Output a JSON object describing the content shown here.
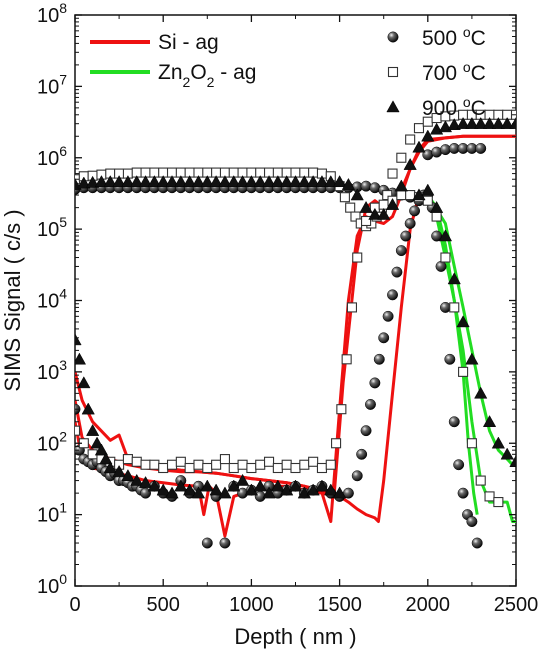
{
  "chart_data": {
    "type": "line",
    "title": "",
    "xlabel": "Depth ( nm )",
    "ylabel": "SIMS Signal ( c/s )",
    "xlim": [
      0,
      2500
    ],
    "ylim": [
      1,
      100000000
    ],
    "yscale": "log",
    "x_ticks": [
      0,
      500,
      1000,
      1500,
      2000,
      2500
    ],
    "y_ticks": [
      1,
      10,
      100,
      1000,
      10000,
      100000,
      1000000,
      10000000,
      100000000
    ],
    "y_tick_labels": [
      {
        "base": "10",
        "exp": "0"
      },
      {
        "base": "10",
        "exp": "1"
      },
      {
        "base": "10",
        "exp": "2"
      },
      {
        "base": "10",
        "exp": "3"
      },
      {
        "base": "10",
        "exp": "4"
      },
      {
        "base": "10",
        "exp": "5"
      },
      {
        "base": "10",
        "exp": "6"
      },
      {
        "base": "10",
        "exp": "7"
      },
      {
        "base": "10",
        "exp": "8"
      }
    ],
    "grid": false,
    "legends": [
      {
        "placement": "top-left",
        "entries": [
          {
            "label_parts": [
              [
                "Si - ag",
                ""
              ]
            ],
            "color": "#ee1111",
            "marker": "line"
          },
          {
            "label_parts": [
              [
                "Zn",
                ""
              ],
              [
                "2",
                "sub"
              ],
              [
                "O",
                ""
              ],
              [
                "2",
                "sub"
              ],
              [
                " - ag",
                ""
              ]
            ],
            "color": "#22dd22",
            "marker": "line"
          }
        ]
      },
      {
        "placement": "top-right",
        "entries": [
          {
            "label_parts": [
              [
                "500 ",
                ""
              ],
              [
                "o",
                "sup"
              ],
              [
                "C",
                ""
              ]
            ],
            "marker": "sphere"
          },
          {
            "label_parts": [
              [
                "700 ",
                ""
              ],
              [
                "o",
                "sup"
              ],
              [
                "C",
                ""
              ]
            ],
            "marker": "open-square"
          },
          {
            "label_parts": [
              [
                "900 ",
                ""
              ],
              [
                "o",
                "sup"
              ],
              [
                "C",
                ""
              ]
            ],
            "marker": "triangle"
          }
        ]
      }
    ],
    "series": [
      {
        "name": "Si - ag",
        "group": 1,
        "color": "#ee1111",
        "temp": "500",
        "style": "line",
        "x": [
          0,
          40,
          100,
          200,
          300,
          400,
          500,
          600,
          700,
          730,
          760,
          800,
          850,
          900,
          1000,
          1100,
          1200,
          1300,
          1400,
          1500,
          1550,
          1600,
          1650,
          1700,
          1720,
          1750,
          1800,
          1850,
          1900,
          1950,
          2000
        ],
        "y": [
          200,
          60,
          45,
          40,
          35,
          30,
          28,
          26,
          25,
          10,
          25,
          20,
          5,
          18,
          22,
          25,
          25,
          22,
          20,
          18,
          15,
          12,
          10,
          9,
          8,
          30,
          500,
          8000,
          100000,
          300000,
          350000
        ]
      },
      {
        "name": "Si - ag",
        "group": 1,
        "color": "#ee1111",
        "temp": "700",
        "style": "line",
        "x": [
          0,
          40,
          100,
          200,
          300,
          400,
          500,
          600,
          700,
          800,
          900,
          1000,
          1100,
          1200,
          1300,
          1400,
          1450,
          1500,
          1550,
          1600,
          1650,
          1700,
          1750,
          1800,
          1850,
          1900,
          1950,
          2000,
          2100,
          2200,
          2300,
          2400,
          2500
        ],
        "y": [
          400,
          120,
          80,
          60,
          50,
          45,
          42,
          40,
          40,
          38,
          35,
          32,
          30,
          28,
          25,
          20,
          8,
          300,
          10000,
          80000,
          150000,
          130000,
          120000,
          150000,
          300000,
          700000,
          1300000,
          1800000,
          1900000,
          2000000,
          2000000,
          2000000,
          2000000
        ]
      },
      {
        "name": "Si - ag",
        "group": 1,
        "color": "#ee1111",
        "temp": "900",
        "style": "line",
        "x": [
          0,
          40,
          100,
          200,
          250,
          300,
          400,
          500,
          600,
          700,
          800,
          900,
          1000,
          1100,
          1200,
          1300,
          1400,
          1470,
          1520,
          1600,
          1650,
          1700,
          1750,
          1800,
          1850,
          1900,
          1950,
          2000,
          2100,
          2200,
          2300,
          2400,
          2500
        ],
        "y": [
          1000,
          400,
          200,
          110,
          130,
          60,
          50,
          45,
          42,
          40,
          38,
          35,
          32,
          30,
          28,
          25,
          22,
          20,
          700,
          50000,
          200000,
          250000,
          200000,
          200000,
          350000,
          700000,
          1200000,
          1700000,
          1900000,
          2000000,
          2000000,
          2000000,
          2000000
        ]
      },
      {
        "name": "Zn2O2 - ag",
        "group": 2,
        "color": "#22dd22",
        "temp": "500",
        "style": "line",
        "x": [
          2000,
          2050,
          2100,
          2150,
          2200,
          2230,
          2260,
          2280
        ],
        "y": [
          300000,
          200000,
          60000,
          10000,
          1000,
          100,
          20,
          10
        ]
      },
      {
        "name": "Zn2O2 - ag",
        "group": 2,
        "color": "#22dd22",
        "temp": "700",
        "style": "line",
        "x": [
          2000,
          2050,
          2100,
          2150,
          2200,
          2250,
          2300,
          2350,
          2400,
          2450,
          2480,
          2500
        ],
        "y": [
          250000,
          150000,
          40000,
          10000,
          2000,
          200,
          30,
          15,
          15,
          15,
          8,
          8
        ]
      },
      {
        "name": "Zn2O2 - ag",
        "group": 2,
        "color": "#22dd22",
        "temp": "900",
        "style": "line",
        "x": [
          2000,
          2100,
          2150,
          2200,
          2250,
          2300,
          2350,
          2400,
          2450,
          2480,
          2500
        ],
        "y": [
          300000,
          120000,
          30000,
          8000,
          2000,
          500,
          150,
          80,
          60,
          50,
          50
        ]
      },
      {
        "name": "500 oC",
        "group": 3,
        "marker": "sphere",
        "style": "markers",
        "color": "#111111",
        "x": [
          0,
          25,
          50,
          75,
          100,
          125,
          150,
          175,
          200,
          225,
          250,
          275,
          300,
          325,
          350,
          375,
          400,
          450,
          500,
          550,
          600,
          650,
          700,
          750,
          800,
          850,
          900,
          950,
          1000,
          1050,
          1100,
          1150,
          1200,
          1250,
          1300,
          1350,
          1400,
          1450,
          1500,
          1550,
          1600,
          1625,
          1650,
          1675,
          1700,
          1725,
          1750,
          1775,
          1800,
          1825,
          1850,
          1875,
          1900,
          1925,
          1950,
          1975,
          2000,
          2025,
          2050,
          2075,
          2100,
          2125,
          2150,
          2175,
          2200,
          2225,
          2250,
          2280
        ],
        "y": [
          300,
          80,
          60,
          55,
          50,
          55,
          45,
          40,
          35,
          38,
          30,
          30,
          28,
          25,
          25,
          22,
          20,
          25,
          20,
          18,
          30,
          20,
          25,
          4,
          18,
          4,
          25,
          20,
          22,
          18,
          25,
          20,
          22,
          25,
          20,
          22,
          25,
          20,
          18,
          20,
          35,
          70,
          150,
          350,
          700,
          1500,
          3000,
          6000,
          12000,
          25000,
          50000,
          80000,
          120000,
          180000,
          250000,
          300000,
          300000,
          200000,
          80000,
          30000,
          8000,
          1500,
          200,
          50,
          20,
          10,
          8,
          4
        ]
      },
      {
        "name": "500 oC",
        "group": 3,
        "marker": "sphere",
        "style": "markers",
        "color": "#111111",
        "x": [
          2000,
          2050,
          2100,
          2150,
          2200,
          2250,
          2300
        ],
        "y": [
          1100000,
          1200000,
          1300000,
          1350000,
          1350000,
          1350000,
          1350000
        ]
      },
      {
        "name": "500 oC",
        "group": 3,
        "marker": "sphere",
        "style": "markers",
        "color": "#111111",
        "x": [
          0,
          50,
          100,
          150,
          200,
          250,
          300,
          350,
          400,
          450,
          500,
          550,
          600,
          650,
          700,
          750,
          800,
          850,
          900,
          950,
          1000,
          1050,
          1100,
          1150,
          1200,
          1250,
          1300,
          1350,
          1400,
          1450,
          1500,
          1550,
          1600,
          1650,
          1700,
          1750,
          1800,
          1850,
          1900
        ],
        "y": [
          360000,
          380000,
          380000,
          380000,
          380000,
          380000,
          380000,
          380000,
          380000,
          380000,
          380000,
          380000,
          380000,
          380000,
          380000,
          380000,
          380000,
          380000,
          380000,
          380000,
          380000,
          380000,
          380000,
          380000,
          380000,
          380000,
          380000,
          380000,
          380000,
          380000,
          380000,
          380000,
          390000,
          400000,
          380000,
          350000,
          320000,
          300000,
          280000
        ]
      },
      {
        "name": "700 oC",
        "group": 4,
        "marker": "open-square",
        "style": "markers",
        "color": "#333333",
        "x": [
          0,
          50,
          100,
          150,
          200,
          250,
          300,
          350,
          400,
          450,
          500,
          550,
          600,
          650,
          700,
          750,
          800,
          850,
          900,
          950,
          1000,
          1050,
          1100,
          1150,
          1200,
          1250,
          1300,
          1350,
          1400,
          1450,
          1500,
          1530,
          1560,
          1590,
          1620,
          1650,
          1680,
          1710,
          1740,
          1770,
          1800,
          1850,
          1900,
          1950,
          2000,
          2050,
          2100,
          2150,
          2200,
          2250,
          2300,
          2350,
          2400,
          2450,
          2500
        ],
        "y": [
          500000,
          550000,
          560000,
          580000,
          600000,
          600000,
          600000,
          620000,
          620000,
          620000,
          620000,
          620000,
          620000,
          620000,
          620000,
          620000,
          620000,
          620000,
          620000,
          620000,
          620000,
          620000,
          620000,
          620000,
          620000,
          620000,
          620000,
          620000,
          600000,
          550000,
          400000,
          280000,
          200000,
          150000,
          120000,
          110000,
          120000,
          150000,
          200000,
          300000,
          600000,
          1000000,
          1800000,
          2600000,
          3200000,
          3600000,
          3800000,
          3900000,
          4000000,
          4000000,
          4000000,
          4000000,
          4000000,
          4000000,
          4000000
        ]
      },
      {
        "name": "700 oC",
        "group": 4,
        "marker": "open-square",
        "style": "markers",
        "color": "#333333",
        "x": [
          0,
          50,
          100,
          150,
          200,
          250,
          300,
          350,
          400,
          450,
          500,
          550,
          600,
          650,
          700,
          750,
          800,
          850,
          900,
          950,
          1000,
          1050,
          1100,
          1150,
          1200,
          1250,
          1300,
          1350,
          1400,
          1450,
          1480,
          1510,
          1540,
          1570,
          1600,
          1650,
          1700,
          1750,
          1800,
          1850,
          1900,
          1950,
          2000,
          2050,
          2100,
          2150,
          2200,
          2250,
          2300,
          2350,
          2400
        ],
        "y": [
          150,
          100,
          70,
          60,
          55,
          50,
          60,
          55,
          50,
          50,
          45,
          50,
          55,
          45,
          50,
          45,
          50,
          60,
          45,
          50,
          45,
          50,
          55,
          45,
          50,
          45,
          50,
          55,
          45,
          50,
          100,
          300,
          1500,
          8000,
          40000,
          130000,
          200000,
          220000,
          250000,
          300000,
          300000,
          280000,
          250000,
          150000,
          40000,
          8000,
          1000,
          100,
          30,
          18,
          15
        ]
      },
      {
        "name": "900 oC",
        "group": 5,
        "marker": "triangle",
        "style": "markers",
        "color": "#111111",
        "x": [
          0,
          25,
          50,
          75,
          100,
          125,
          150,
          175,
          200,
          250,
          300,
          350,
          400,
          450,
          500,
          550,
          600,
          650,
          700,
          750,
          800,
          850,
          900,
          950,
          1000,
          1050,
          1100,
          1150,
          1200,
          1250,
          1300,
          1350,
          1400,
          1450,
          1500
        ],
        "y": [
          2800,
          1500,
          700,
          300,
          150,
          100,
          80,
          60,
          45,
          40,
          35,
          30,
          28,
          25,
          22,
          20,
          25,
          22,
          20,
          25,
          22,
          20,
          25,
          30,
          22,
          25,
          20,
          25,
          22,
          25,
          20,
          22,
          25,
          22,
          20
        ]
      },
      {
        "name": "900 oC",
        "group": 5,
        "marker": "triangle",
        "style": "markers",
        "color": "#111111",
        "x": [
          0,
          50,
          100,
          150,
          200,
          250,
          300,
          350,
          400,
          450,
          500,
          550,
          600,
          650,
          700,
          750,
          800,
          850,
          900,
          950,
          1000,
          1050,
          1100,
          1150,
          1200,
          1250,
          1300,
          1350,
          1400,
          1450,
          1500,
          1550,
          1600,
          1650,
          1700,
          1750,
          1800,
          1850,
          1900,
          1950,
          2000,
          2050,
          2100,
          2150,
          2200,
          2250,
          2300,
          2350,
          2400,
          2450,
          2500
        ],
        "y": [
          420000,
          440000,
          450000,
          460000,
          460000,
          460000,
          460000,
          460000,
          460000,
          460000,
          460000,
          460000,
          460000,
          460000,
          460000,
          460000,
          460000,
          460000,
          460000,
          460000,
          460000,
          460000,
          460000,
          460000,
          460000,
          460000,
          460000,
          460000,
          460000,
          460000,
          460000,
          420000,
          300000,
          200000,
          160000,
          160000,
          220000,
          400000,
          800000,
          1400000,
          2000000,
          2500000,
          2700000,
          2900000,
          3000000,
          3000000,
          3000000,
          3000000,
          3000000,
          3000000,
          3000000
        ]
      },
      {
        "name": "900 oC",
        "group": 5,
        "marker": "triangle",
        "style": "markers",
        "color": "#111111",
        "x": [
          1950,
          2000,
          2050,
          2100,
          2150,
          2200,
          2250,
          2300,
          2350,
          2400,
          2450,
          2500
        ],
        "y": [
          300000,
          350000,
          200000,
          80000,
          20000,
          5000,
          1500,
          500,
          200,
          100,
          70,
          55
        ]
      }
    ]
  }
}
